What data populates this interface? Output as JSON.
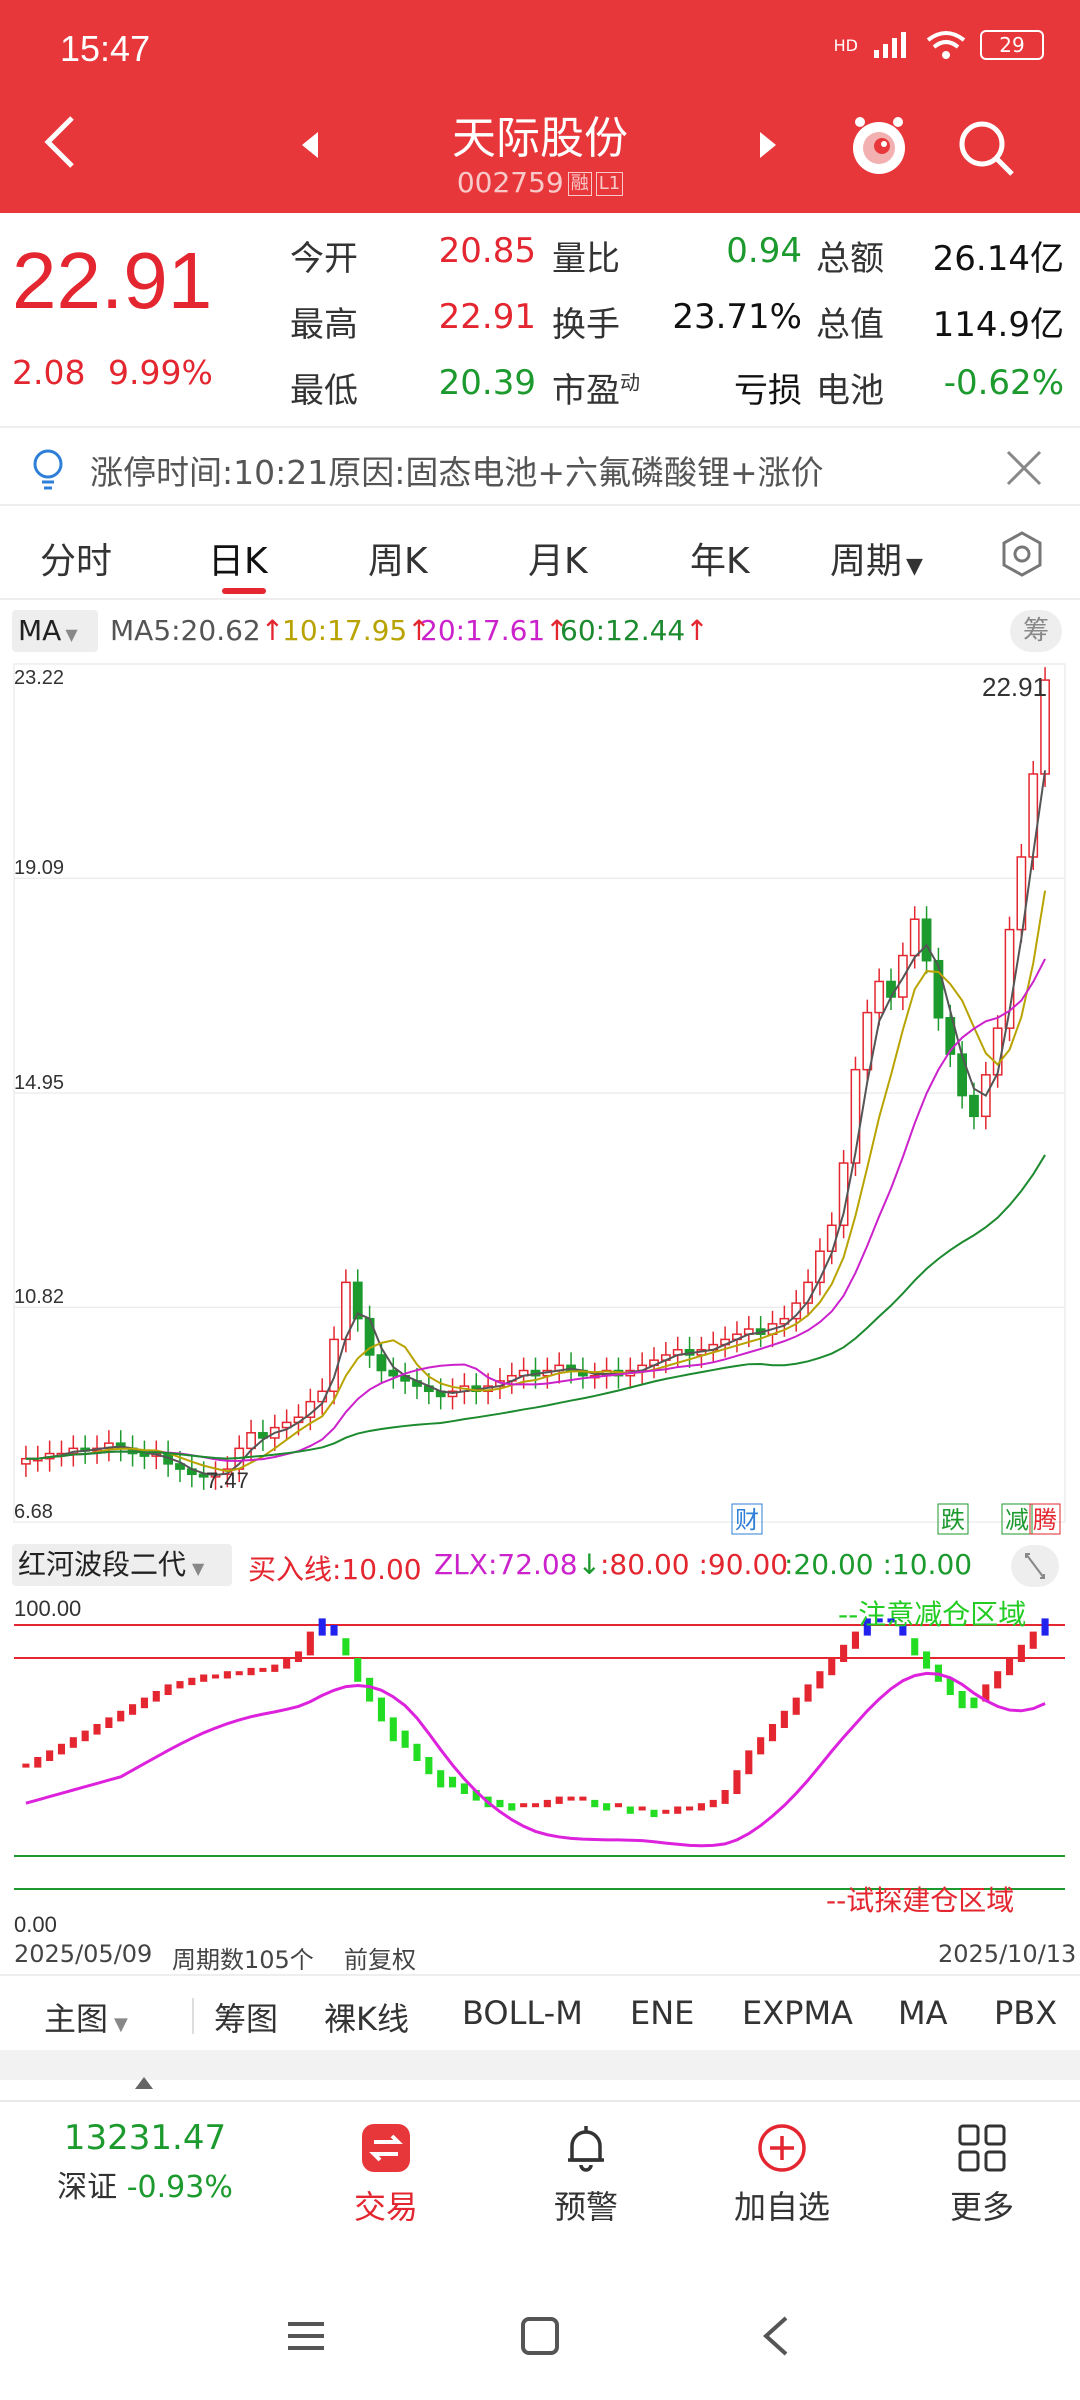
{
  "status": {
    "time": "15:47",
    "network": "HD",
    "battery": "29"
  },
  "header": {
    "title": "天际股份",
    "code": "002759",
    "tag1": "融",
    "tag2": "L1"
  },
  "quote": {
    "price": "22.91",
    "change_abs": "2.08",
    "change_pct": "9.99%",
    "rows": [
      {
        "l1": "今开",
        "v1": "20.85",
        "l2": "量比",
        "v2": "0.94",
        "l3": "总额",
        "v3": "26.14亿"
      },
      {
        "l1": "最高",
        "v1": "22.91",
        "l2": "换手",
        "v2": "23.71%",
        "l3": "总值",
        "v3": "114.9亿"
      },
      {
        "l1": "最低",
        "v1": "20.39",
        "l2": "市盈",
        "l2_sup": "动",
        "v2": "亏损",
        "l3": "电池",
        "v3": "-0.62%"
      }
    ]
  },
  "alert": {
    "text": "涨停时间:10:21原因:固态电池+六氟磷酸锂+涨价"
  },
  "tabs": [
    "分时",
    "日K",
    "周K",
    "月K",
    "年K",
    "周期"
  ],
  "ma_legend": {
    "select": "MA",
    "ma5": "MA5:20.62",
    "ma10": "10:17.95",
    "ma20": "20:17.61",
    "ma60": "60:12.44",
    "chip_btn": "筹"
  },
  "chart_data": {
    "type": "candlestick",
    "y_ticks": [
      "23.22",
      "19.09",
      "14.95",
      "10.82",
      "6.68"
    ],
    "ylim": [
      6.68,
      23.22
    ],
    "high_label": "22.91",
    "low_label": "7.47",
    "markers": [
      "财",
      "跌",
      "减",
      "腾"
    ],
    "period_count": 105,
    "start_date": "2025/05/09",
    "end_date": "2025/10/13"
  },
  "indicator": {
    "select": "红河波段二代",
    "buy_label": "买入线:10.00",
    "zlx": "ZLX:72.08",
    "lines": ":80.00 :90.00",
    "lines2": ":20.00 :10.00",
    "y_top": "100.00",
    "y_bottom": "0.00",
    "zone_top": "--注意减仓区域",
    "zone_bottom": "--试探建仓区域"
  },
  "date_row": {
    "start": "2025/05/09",
    "periods": "周期数105个",
    "adjust": "前复权",
    "end": "2025/10/13"
  },
  "ind_tabs": [
    "主图",
    "筹图",
    "裸K线",
    "BOLL-M",
    "ENE",
    "EXPMA",
    "MA",
    "PBX"
  ],
  "bottom_nav": {
    "index_value": "13231.47",
    "index_name": "深证",
    "index_change": "-0.93%",
    "trade": "交易",
    "alert": "预警",
    "add": "加自选",
    "more": "更多"
  },
  "colors": {
    "header": "#e8373b",
    "up": "#e3262f",
    "down": "#1c9a2e"
  }
}
